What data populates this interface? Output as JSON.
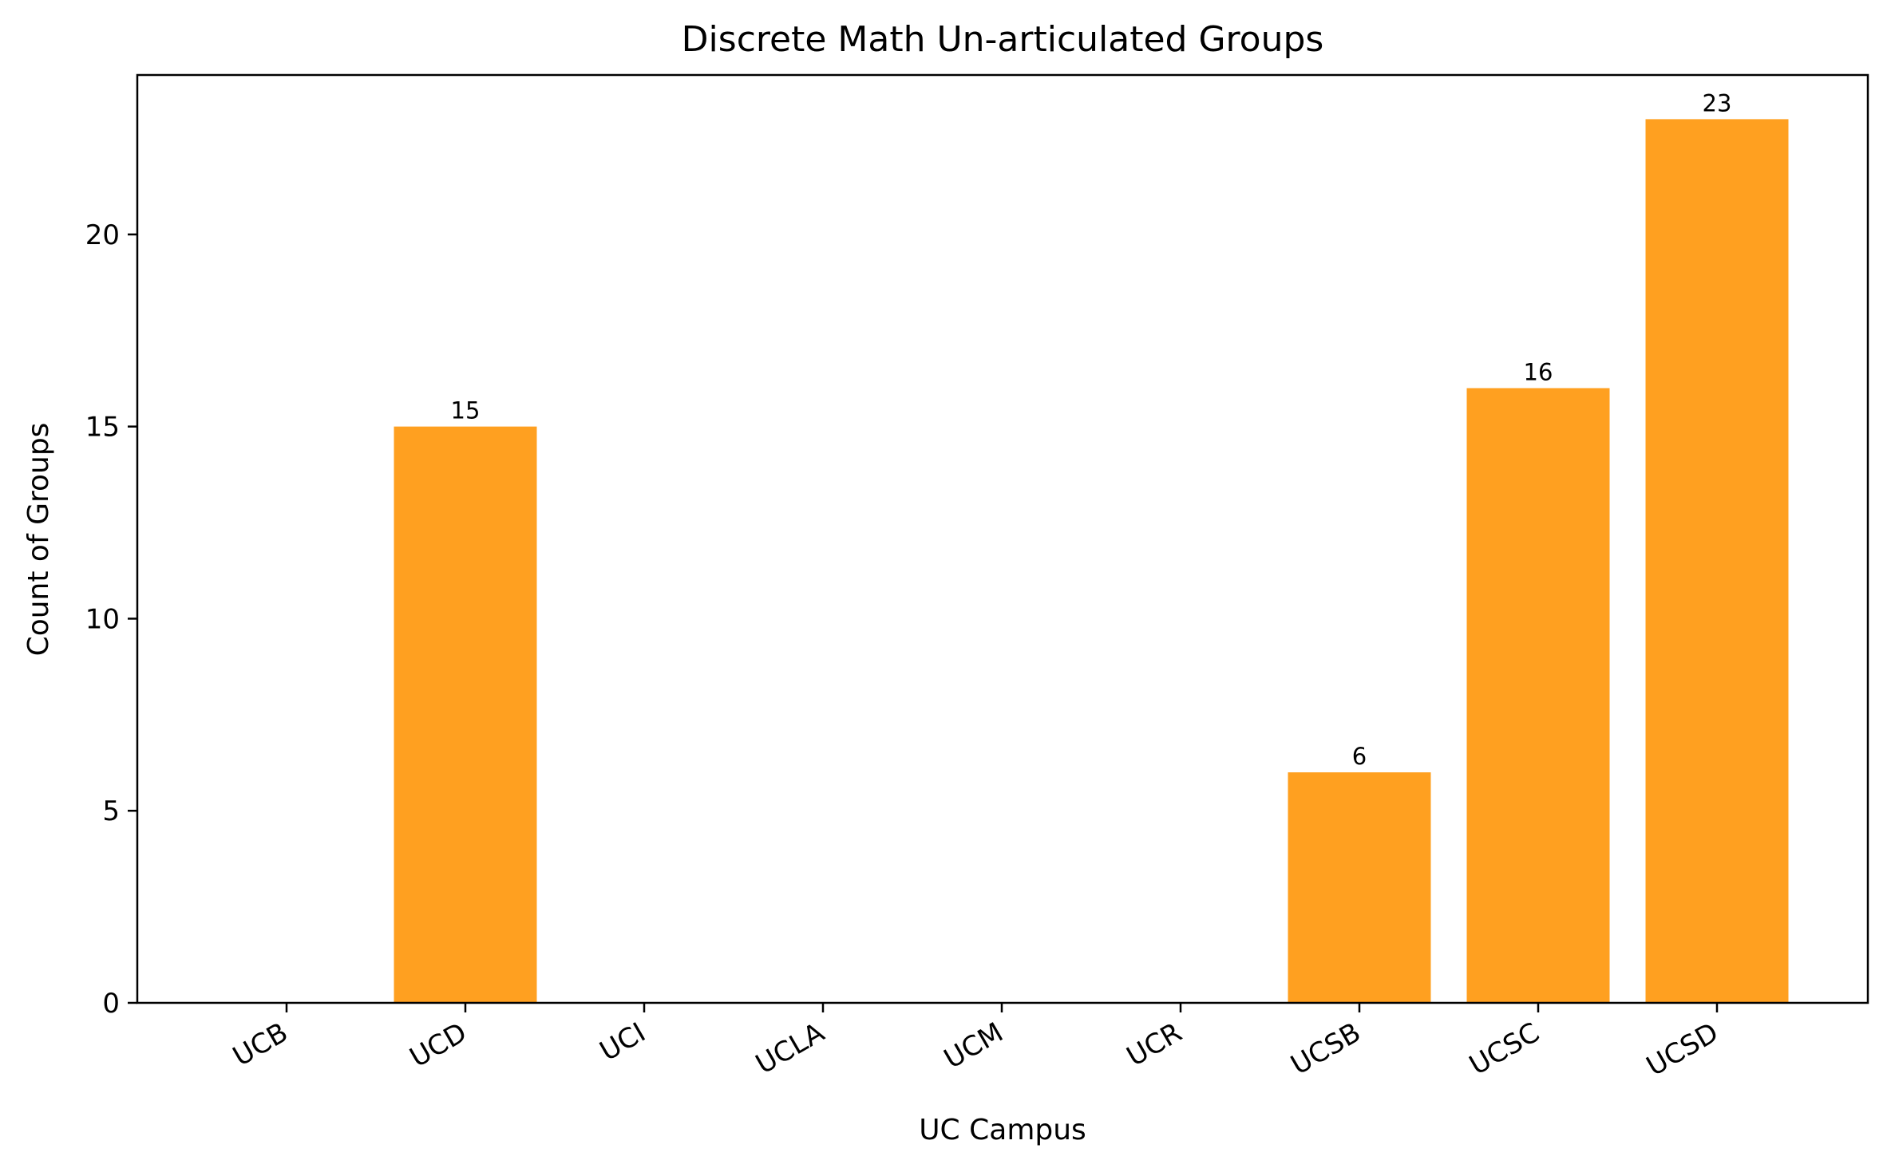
{
  "chart_data": {
    "type": "bar",
    "title": "Discrete Math  Un-articulated Groups",
    "xlabel": "UC Campus",
    "ylabel": "Count of Groups",
    "categories": [
      "UCB",
      "UCD",
      "UCI",
      "UCLA",
      "UCM",
      "UCR",
      "UCSB",
      "UCSC",
      "UCSD"
    ],
    "values": [
      0,
      15,
      0,
      0,
      0,
      0,
      6,
      16,
      23
    ],
    "data_labels": [
      "",
      "15",
      "",
      "",
      "",
      "",
      "6",
      "16",
      "23"
    ],
    "ylim": [
      0,
      24.15
    ],
    "yticks": [
      0,
      5,
      10,
      15,
      20
    ],
    "bar_color": "#ffa020",
    "grid": false,
    "legend": "none"
  }
}
